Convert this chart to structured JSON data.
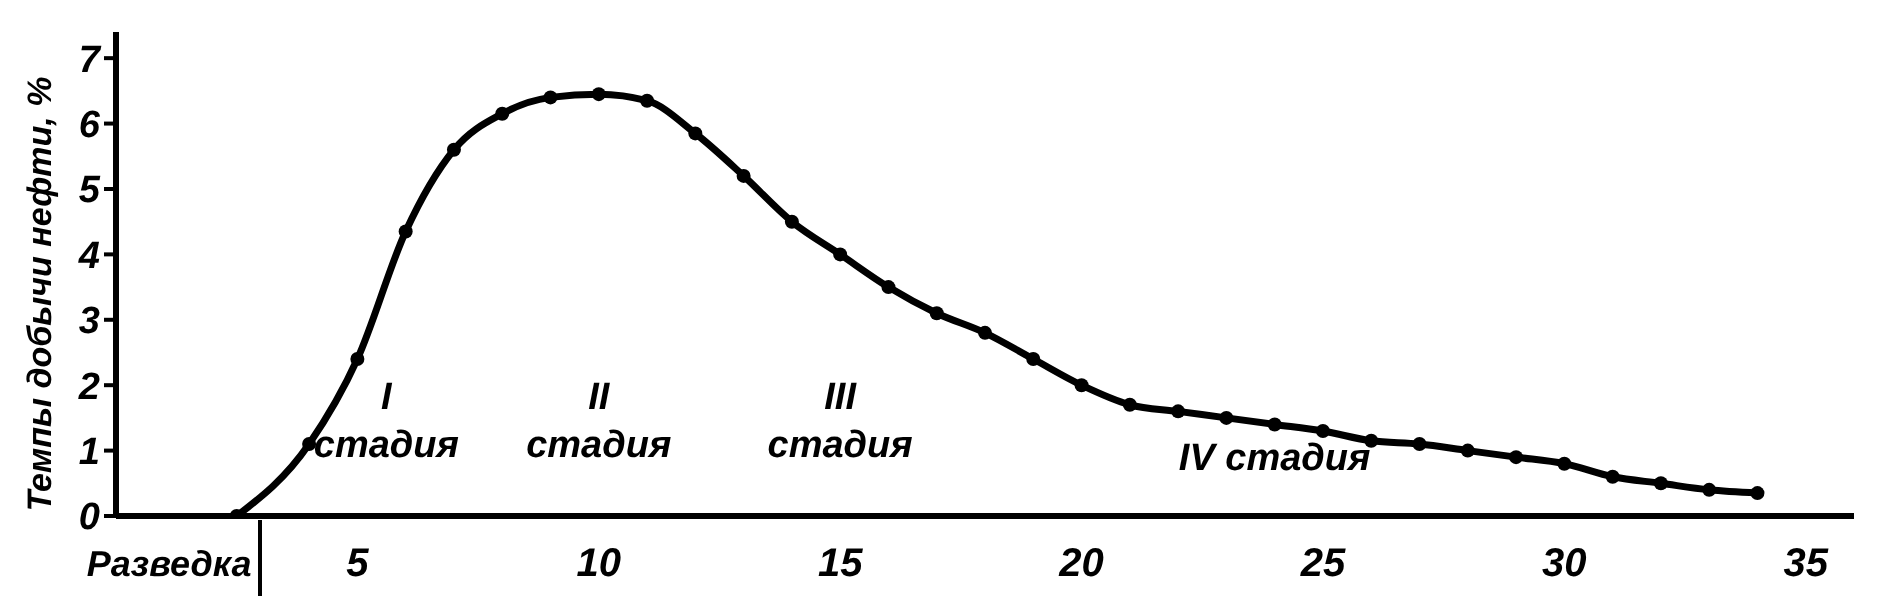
{
  "chart_data": {
    "type": "line",
    "ylabel": "Темпы добычи нефти, %",
    "x": [
      2.5,
      4,
      5,
      6,
      7,
      8,
      9,
      10,
      11,
      12,
      13,
      14,
      15,
      16,
      17,
      18,
      19,
      20,
      21,
      22,
      23,
      24,
      25,
      26,
      27,
      28,
      29,
      30,
      31,
      32,
      33,
      34
    ],
    "series": [
      {
        "color": "#000000",
        "values": [
          0,
          1.1,
          2.4,
          4.35,
          5.6,
          6.15,
          6.4,
          6.45,
          6.35,
          5.85,
          5.2,
          4.5,
          4.0,
          3.5,
          3.1,
          2.8,
          2.4,
          2.0,
          1.7,
          1.6,
          1.5,
          1.4,
          1.3,
          1.15,
          1.1,
          1.0,
          0.9,
          0.8,
          0.6,
          0.5,
          0.4,
          0.35
        ]
      }
    ],
    "xlim": [
      0,
      36
    ],
    "xticks": [
      {
        "value": 1.1,
        "label": "Разведка"
      },
      5,
      10,
      15,
      20,
      25,
      30,
      35
    ],
    "ylim": [
      0,
      7.4
    ],
    "yticks": [
      0,
      1,
      2,
      3,
      4,
      5,
      6,
      7
    ],
    "marker": "circle",
    "line_style": "solid",
    "annotations": [
      "I\nстадия",
      "II\nстадия",
      "III\nстадия",
      "IV стадия"
    ]
  }
}
